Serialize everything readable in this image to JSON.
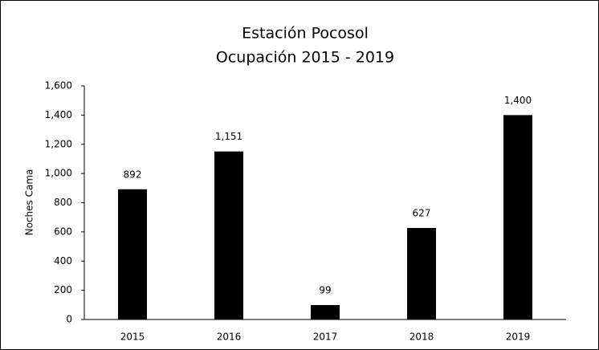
{
  "chart_data": {
    "type": "bar",
    "title": "Estación Pocosol",
    "subtitle": "Ocupación 2015 - 2019",
    "y_label": "Noches Cama",
    "categories": [
      "2015",
      "2016",
      "2017",
      "2018",
      "2019"
    ],
    "values": [
      892,
      1151,
      99,
      627,
      1400
    ],
    "value_labels": [
      "892",
      "1,151",
      "99",
      "627",
      "1,400"
    ],
    "color": "#000000",
    "ylim": [
      0,
      1600
    ],
    "yticks": [
      0,
      200,
      400,
      600,
      800,
      {
        "value": 1000,
        "label": "1,000"
      },
      {
        "value": 1200,
        "label": "1,200"
      },
      {
        "value": 1400,
        "label": "1,400"
      },
      {
        "value": 1600,
        "label": "1,600"
      }
    ],
    "grid": false
  }
}
